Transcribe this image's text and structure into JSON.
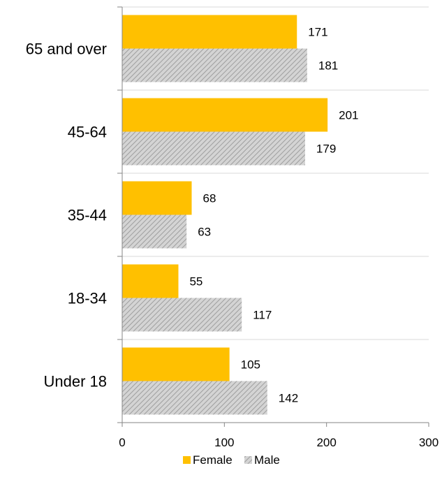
{
  "chart_data": {
    "type": "bar",
    "orientation": "horizontal",
    "categories": [
      "65 and over",
      "45-64",
      "35-44",
      "18-34",
      "Under 18"
    ],
    "series": [
      {
        "name": "Female",
        "values": [
          171,
          201,
          68,
          55,
          105
        ],
        "color": "#FFC000",
        "pattern": "solid"
      },
      {
        "name": "Male",
        "values": [
          181,
          179,
          63,
          117,
          142
        ],
        "color": "#BFBFBF",
        "pattern": "diagonal-hatch"
      }
    ],
    "x_ticks": [
      "0",
      "100",
      "200",
      "300"
    ],
    "xlim": [
      0,
      300
    ],
    "grid": "horizontal separators between categories",
    "legend_position": "bottom"
  }
}
